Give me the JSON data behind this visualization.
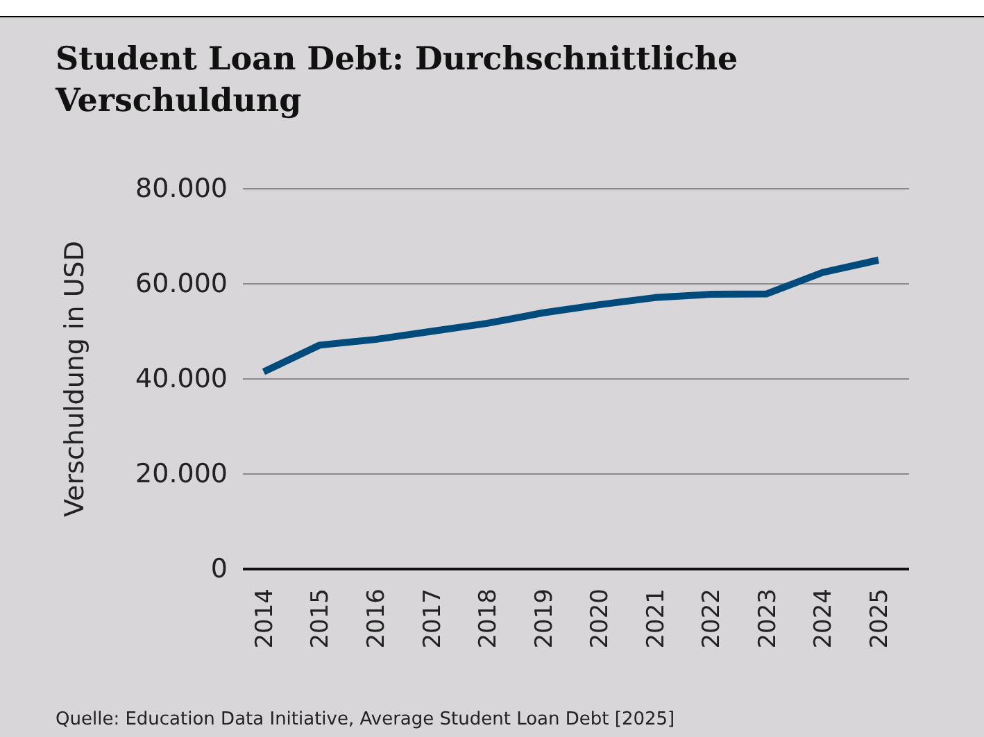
{
  "chart_data": {
    "type": "line",
    "title": "Student Loan Debt: Durchschnittliche Verschuldung",
    "ylabel": "Verschuldung in USD",
    "categories": [
      "2014",
      "2015",
      "2016",
      "2017",
      "2018",
      "2019",
      "2020",
      "2021",
      "2022",
      "2023",
      "2024",
      "2025"
    ],
    "series": [
      {
        "color": "#004b7c",
        "values": [
          41500,
          47100,
          48300,
          50000,
          51700,
          53900,
          55600,
          57100,
          57800,
          57900,
          62400,
          65000
        ]
      }
    ],
    "ylim": [
      0,
      80000
    ],
    "yticks": [
      {
        "value": 0,
        "label": "0"
      },
      {
        "value": 20000,
        "label": "20.000"
      },
      {
        "value": 40000,
        "label": "40.000"
      },
      {
        "value": 60000,
        "label": "60.000"
      },
      {
        "value": 80000,
        "label": "80.000"
      }
    ],
    "grid": "y",
    "legend": false,
    "marker": "none",
    "line_style": "solid",
    "annotations": [
      "Quelle: Education Data Initiative, Average Student Loan Debt [2025]"
    ]
  }
}
